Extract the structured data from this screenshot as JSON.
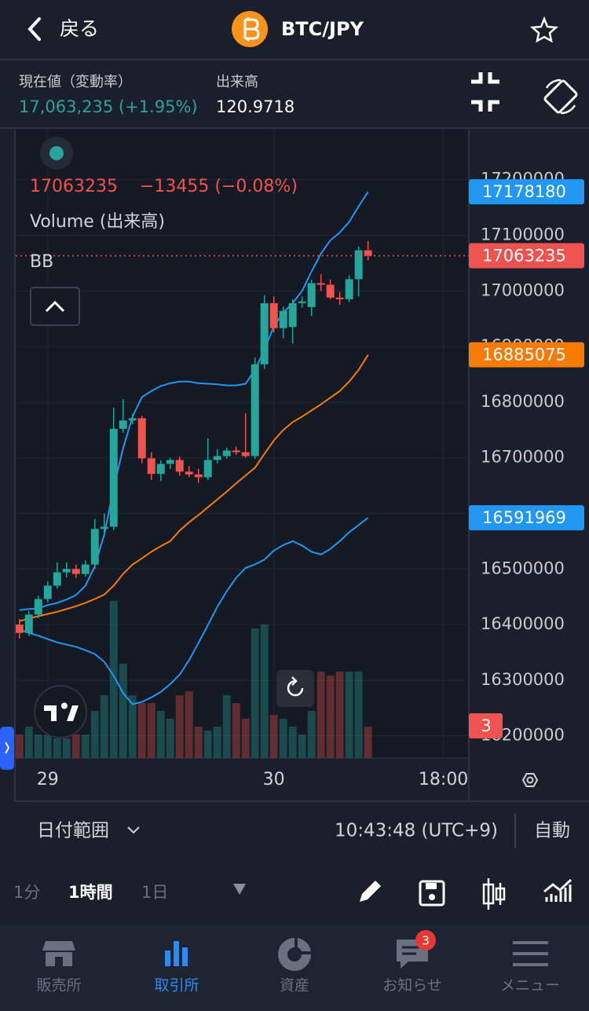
{
  "header": {
    "back": "戻る",
    "pair": "BTC/JPY"
  },
  "info": {
    "price_label": "現在値（変動率）",
    "price": "17,063,235 (+1.95%)",
    "volume_label": "出来高",
    "volume": "120.9718"
  },
  "chart_data": {
    "type": "candlestick",
    "change": "−13455 (−0.08%)",
    "volume_name": "Volume (出来高)",
    "indicator_name": "BB",
    "up_color": "#26a69a",
    "down_color": "#ef5350",
    "candles": [
      [
        16400000,
        16410000,
        16375000,
        16385000
      ],
      [
        16385000,
        16425000,
        16380000,
        16418000
      ],
      [
        16418000,
        16452000,
        16412000,
        16446000
      ],
      [
        16446000,
        16478000,
        16440000,
        16470000
      ],
      [
        16470000,
        16512000,
        16465000,
        16494000
      ],
      [
        16494000,
        16512000,
        16485000,
        16500000
      ],
      [
        16500000,
        16508000,
        16484000,
        16491000
      ],
      [
        16491000,
        16515000,
        16486000,
        16508000
      ],
      [
        16508000,
        16590000,
        16500000,
        16572000
      ],
      [
        16572000,
        16600000,
        16565000,
        16576000
      ],
      [
        16576000,
        16790000,
        16570000,
        16752000
      ],
      [
        16752000,
        16805000,
        16745000,
        16767000
      ],
      [
        16767000,
        16778000,
        16760000,
        16771000
      ],
      [
        16771000,
        16775000,
        16690000,
        16699000
      ],
      [
        16699000,
        16710000,
        16660000,
        16671000
      ],
      [
        16671000,
        16695000,
        16658000,
        16689000
      ],
      [
        16689000,
        16700000,
        16680000,
        16696000
      ],
      [
        16696000,
        16702000,
        16668000,
        16675000
      ],
      [
        16675000,
        16685000,
        16665000,
        16670000
      ],
      [
        16670000,
        16680000,
        16655000,
        16665000
      ],
      [
        16665000,
        16735000,
        16660000,
        16696000
      ],
      [
        16696000,
        16715000,
        16690000,
        16703000
      ],
      [
        16703000,
        16718000,
        16698000,
        16713000
      ],
      [
        16713000,
        16720000,
        16705000,
        16710000
      ],
      [
        16710000,
        16780000,
        16700000,
        16703000
      ],
      [
        16703000,
        16880000,
        16698000,
        16868000
      ],
      [
        16868000,
        16992000,
        16860000,
        16978000
      ],
      [
        16978000,
        16990000,
        16925000,
        16933000
      ],
      [
        16933000,
        16972000,
        16915000,
        16964000
      ],
      [
        16935000,
        16985000,
        16905000,
        16978000
      ],
      [
        16978000,
        16990000,
        16970000,
        16981000
      ],
      [
        16971000,
        17020000,
        16955000,
        17014000
      ],
      [
        17014000,
        17030000,
        17000000,
        17011000
      ],
      [
        17011000,
        17020000,
        16985000,
        16988000
      ],
      [
        16988000,
        16998000,
        16975000,
        16985000
      ],
      [
        16985000,
        17028000,
        16980000,
        17021000
      ],
      [
        17021000,
        17080000,
        16990000,
        17073000
      ],
      [
        17073000,
        17090000,
        17055000,
        17063235
      ]
    ],
    "volumes": [
      30,
      40,
      30,
      30,
      25,
      25,
      30,
      30,
      60,
      80,
      200,
      120,
      80,
      70,
      70,
      60,
      50,
      80,
      85,
      40,
      35,
      40,
      80,
      70,
      50,
      165,
      170,
      55,
      50,
      40,
      30,
      60,
      110,
      105,
      110,
      110,
      110,
      40
    ],
    "bands": [
      {
        "color": "#2196f3",
        "values": [
          16426000,
          16428000,
          16429000,
          16435000,
          16439000,
          16445000,
          16453000,
          16470000,
          16505000,
          16562000,
          16646000,
          16717000,
          16774000,
          16809000,
          16820000,
          16829000,
          16834000,
          16837000,
          16837000,
          16834000,
          16833000,
          16832000,
          16830000,
          16830000,
          16833000,
          16858000,
          16894000,
          16936000,
          16961000,
          16978000,
          17000000,
          17035000,
          17067000,
          17091000,
          17105000,
          17124000,
          17152000,
          17178180
        ]
      },
      {
        "color": "#f57c00",
        "values": [
          16406000,
          16411000,
          16415000,
          16419000,
          16423000,
          16428000,
          16433000,
          16439000,
          16446000,
          16454000,
          16470000,
          16491000,
          16508000,
          16519000,
          16531000,
          16541000,
          16550000,
          16569000,
          16584000,
          16597000,
          16611000,
          16625000,
          16639000,
          16654000,
          16668000,
          16682000,
          16707000,
          16731000,
          16750000,
          16764000,
          16774000,
          16785000,
          16796000,
          16808000,
          16820000,
          16837000,
          16858000,
          16885075
        ]
      },
      {
        "color": "#2196f3",
        "values": [
          16391000,
          16385000,
          16380000,
          16374000,
          16368000,
          16364000,
          16360000,
          16354000,
          16347000,
          16333000,
          16308000,
          16277000,
          16257000,
          16261000,
          16269000,
          16279000,
          16293000,
          16310000,
          16336000,
          16367000,
          16399000,
          16432000,
          16460000,
          16484000,
          16502000,
          16508000,
          16517000,
          16533000,
          16543000,
          16550000,
          16542000,
          16531000,
          16526000,
          16536000,
          16550000,
          16566000,
          16579000,
          16591969
        ]
      }
    ],
    "ylim": [
      16160000,
      17290000
    ],
    "yticks": [
      16200000,
      16300000,
      16400000,
      16500000,
      16600000,
      16700000,
      16800000,
      16900000,
      17000000,
      17100000,
      17200000
    ],
    "xlim": [
      -0.4,
      47.7
    ],
    "xticks": [
      {
        "value": 3,
        "label": "29"
      },
      {
        "value": 27,
        "label": "30"
      },
      {
        "value": 45,
        "label": "18:00"
      }
    ],
    "grid": true,
    "alert_count": 3
  },
  "controls": {
    "date_range": "日付範囲",
    "time": "10:43:48 (UTC+9)",
    "auto": "自動",
    "intervals": [
      "1分",
      "1時間",
      "1日"
    ]
  },
  "nav": {
    "items": [
      "販売所",
      "取引所",
      "資産",
      "お知らせ",
      "メニュー"
    ],
    "badge": 3
  }
}
